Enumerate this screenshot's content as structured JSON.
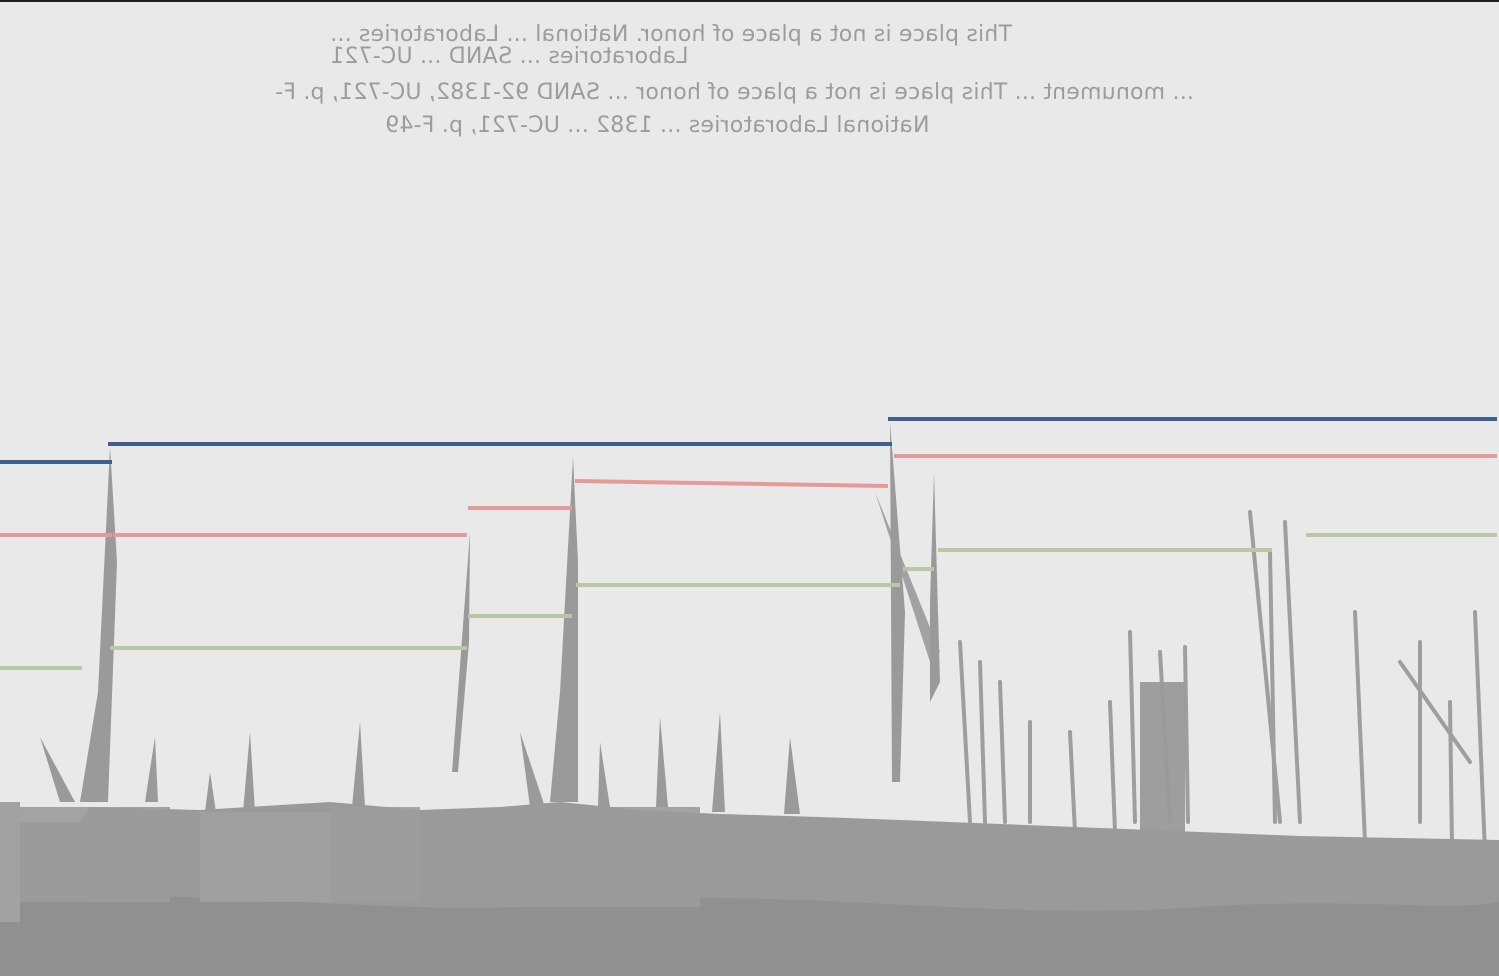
{
  "caption": {
    "lines": [
      "This place is not a place of honor. National ... Laboratories ...",
      "Laboratories ... SAND ... UC-721",
      "... monument ... This place is not a place of honor ... SAND 92-1382, UC-721, p. F-",
      "National Laboratories ... 1382 ... UC-721, p. F-49"
    ]
  },
  "colors": {
    "background": "#e9e9e9",
    "silhouette": "#9a9a9a",
    "line_blue": "#3f5f8f",
    "line_red": "#e59a9a",
    "line_green": "#b9c7a6"
  }
}
